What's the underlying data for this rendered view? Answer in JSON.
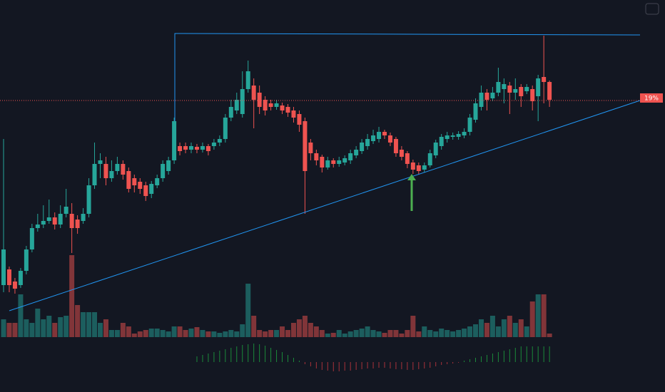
{
  "chart_data": {
    "type": "candlestick",
    "price_label": "19%",
    "ylim": [
      0,
      550
    ],
    "up_color": "#26a69a",
    "down_color": "#ef5350",
    "candles": [
      [
        150,
        355,
        140,
        200
      ],
      [
        172,
        176,
        140,
        150
      ],
      [
        155,
        160,
        138,
        145
      ],
      [
        150,
        174,
        146,
        170
      ],
      [
        170,
        205,
        165,
        200
      ],
      [
        200,
        236,
        196,
        230
      ],
      [
        230,
        250,
        225,
        235
      ],
      [
        235,
        262,
        230,
        240
      ],
      [
        240,
        270,
        236,
        245
      ],
      [
        245,
        252,
        228,
        235
      ],
      [
        235,
        262,
        230,
        250
      ],
      [
        250,
        285,
        245,
        260
      ],
      [
        250,
        265,
        195,
        230
      ],
      [
        242,
        248,
        222,
        230
      ],
      [
        240,
        258,
        236,
        250
      ],
      [
        250,
        300,
        245,
        290
      ],
      [
        290,
        350,
        285,
        320
      ],
      [
        320,
        335,
        300,
        325
      ],
      [
        320,
        330,
        290,
        300
      ],
      [
        300,
        325,
        295,
        310
      ],
      [
        310,
        330,
        305,
        320
      ],
      [
        320,
        325,
        298,
        305
      ],
      [
        310,
        315,
        280,
        285
      ],
      [
        300,
        305,
        280,
        290
      ],
      [
        295,
        300,
        278,
        285
      ],
      [
        290,
        295,
        268,
        275
      ],
      [
        278,
        296,
        272,
        292
      ],
      [
        290,
        305,
        286,
        300
      ],
      [
        300,
        325,
        295,
        320
      ],
      [
        310,
        330,
        305,
        325
      ],
      [
        325,
        385,
        320,
        380
      ],
      [
        345,
        350,
        332,
        338
      ],
      [
        345,
        350,
        335,
        340
      ],
      [
        340,
        350,
        335,
        345
      ],
      [
        344,
        348,
        335,
        340
      ],
      [
        340,
        350,
        336,
        345
      ],
      [
        345,
        348,
        332,
        338
      ],
      [
        345,
        355,
        340,
        350
      ],
      [
        350,
        360,
        345,
        355
      ],
      [
        355,
        390,
        350,
        385
      ],
      [
        385,
        410,
        380,
        400
      ],
      [
        395,
        420,
        390,
        410
      ],
      [
        390,
        450,
        385,
        425
      ],
      [
        425,
        465,
        420,
        450
      ],
      [
        430,
        440,
        370,
        410
      ],
      [
        420,
        430,
        390,
        400
      ],
      [
        410,
        415,
        388,
        395
      ],
      [
        405,
        410,
        395,
        400
      ],
      [
        400,
        410,
        396,
        405
      ],
      [
        402,
        406,
        390,
        395
      ],
      [
        400,
        404,
        386,
        392
      ],
      [
        395,
        400,
        378,
        385
      ],
      [
        390,
        395,
        365,
        375
      ],
      [
        380,
        385,
        250,
        310
      ],
      [
        350,
        355,
        325,
        335
      ],
      [
        335,
        340,
        318,
        325
      ],
      [
        330,
        333,
        308,
        315
      ],
      [
        315,
        330,
        312,
        325
      ],
      [
        325,
        328,
        315,
        320
      ],
      [
        320,
        330,
        316,
        325
      ],
      [
        322,
        332,
        318,
        328
      ],
      [
        325,
        340,
        320,
        335
      ],
      [
        332,
        345,
        328,
        340
      ],
      [
        338,
        355,
        334,
        350
      ],
      [
        345,
        362,
        340,
        355
      ],
      [
        352,
        368,
        348,
        360
      ],
      [
        355,
        372,
        350,
        365
      ],
      [
        365,
        368,
        355,
        360
      ],
      [
        360,
        364,
        345,
        350
      ],
      [
        355,
        358,
        330,
        335
      ],
      [
        340,
        345,
        325,
        330
      ],
      [
        335,
        338,
        314,
        320
      ],
      [
        322,
        326,
        306,
        312
      ],
      [
        318,
        322,
        305,
        310
      ],
      [
        312,
        322,
        308,
        318
      ],
      [
        318,
        340,
        315,
        335
      ],
      [
        332,
        354,
        328,
        350
      ],
      [
        345,
        362,
        340,
        358
      ],
      [
        355,
        365,
        350,
        360
      ],
      [
        358,
        364,
        354,
        360
      ],
      [
        358,
        366,
        354,
        362
      ],
      [
        360,
        370,
        356,
        365
      ],
      [
        365,
        390,
        360,
        385
      ],
      [
        382,
        412,
        378,
        405
      ],
      [
        400,
        430,
        395,
        420
      ],
      [
        420,
        425,
        395,
        410
      ],
      [
        412,
        428,
        408,
        420
      ],
      [
        420,
        455,
        415,
        435
      ],
      [
        425,
        440,
        405,
        432
      ],
      [
        430,
        435,
        390,
        420
      ],
      [
        420,
        440,
        410,
        425
      ],
      [
        428,
        432,
        400,
        415
      ],
      [
        422,
        432,
        418,
        428
      ],
      [
        425,
        430,
        395,
        408
      ],
      [
        415,
        445,
        380,
        440
      ],
      [
        442,
        500,
        405,
        435
      ],
      [
        435,
        437,
        400,
        410
      ]
    ],
    "volume": [
      25,
      20,
      20,
      60,
      25,
      20,
      40,
      25,
      30,
      20,
      28,
      30,
      115,
      45,
      35,
      35,
      35,
      20,
      25,
      10,
      10,
      20,
      15,
      5,
      8,
      10,
      12,
      12,
      10,
      8,
      15,
      15,
      10,
      12,
      14,
      10,
      8,
      8,
      6,
      8,
      10,
      8,
      18,
      75,
      30,
      10,
      8,
      10,
      10,
      15,
      10,
      20,
      25,
      30,
      20,
      15,
      10,
      5,
      6,
      10,
      5,
      8,
      10,
      12,
      15,
      10,
      8,
      6,
      10,
      10,
      5,
      10,
      30,
      8,
      15,
      10,
      8,
      12,
      10,
      8,
      10,
      12,
      15,
      18,
      25,
      20,
      30,
      15,
      25,
      30,
      20,
      25,
      15,
      50,
      60,
      60,
      5
    ],
    "oscillator": [
      null,
      null,
      null,
      null,
      null,
      null,
      null,
      null,
      null,
      null,
      null,
      null,
      null,
      null,
      null,
      null,
      null,
      null,
      null,
      null,
      null,
      null,
      null,
      null,
      null,
      null,
      null,
      null,
      null,
      null,
      null,
      null,
      null,
      null,
      8,
      10,
      12,
      14,
      16,
      18,
      20,
      22,
      24,
      25,
      26,
      25,
      23,
      20,
      17,
      14,
      10,
      6,
      2,
      -3,
      -6,
      -9,
      -11,
      -12,
      -13,
      -13,
      -12,
      -12,
      -11,
      -10,
      -9,
      -9,
      -8,
      -8,
      -9,
      -10,
      -10,
      -11,
      -11,
      -10,
      -9,
      -8,
      -6,
      -4,
      -3,
      -2,
      -1,
      2,
      4,
      6,
      8,
      10,
      12,
      14,
      16,
      18,
      20,
      22,
      22,
      22,
      22,
      22,
      22
    ]
  }
}
